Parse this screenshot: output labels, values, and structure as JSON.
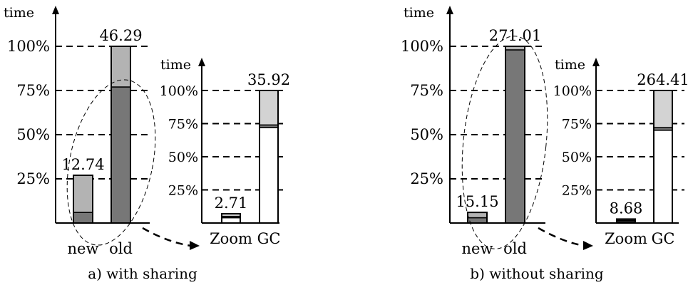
{
  "chart_data": [
    {
      "type": "bar",
      "panel": "a",
      "caption": "a) with sharing",
      "ylabel": "time",
      "yticks": [
        "25%",
        "50%",
        "75%",
        "100%"
      ],
      "categories": [
        "new",
        "old"
      ],
      "totals": [
        "12.74",
        "46.29"
      ],
      "stacked_percent": {
        "dark": [
          6,
          77
        ],
        "light": [
          21,
          23
        ]
      },
      "ylim": [
        0,
        100
      ]
    },
    {
      "type": "bar",
      "panel": "a-zoom",
      "ylabel": "time",
      "yticks": [
        "25%",
        "50%",
        "75%",
        "100%"
      ],
      "categories": [
        "Zoom",
        "GC"
      ],
      "totals": [
        "2.71",
        "35.92"
      ],
      "stacked_percent": {
        "white": [
          4,
          72
        ],
        "dark": [
          1,
          2
        ],
        "light": [
          2,
          26
        ]
      },
      "ylim": [
        0,
        100
      ]
    },
    {
      "type": "bar",
      "panel": "b",
      "caption": "b) without sharing",
      "ylabel": "time",
      "yticks": [
        "25%",
        "50%",
        "75%",
        "100%"
      ],
      "categories": [
        "new",
        "old"
      ],
      "totals": [
        "15.15",
        "271.01"
      ],
      "stacked_percent": {
        "dark": [
          3,
          98
        ],
        "light": [
          3,
          2
        ]
      },
      "ylim": [
        0,
        100
      ]
    },
    {
      "type": "bar",
      "panel": "b-zoom",
      "ylabel": "time",
      "yticks": [
        "25%",
        "50%",
        "75%",
        "100%"
      ],
      "categories": [
        "Zoom",
        "GC"
      ],
      "totals": [
        "8.68",
        "264.41"
      ],
      "stacked_percent": {
        "white": [
          1,
          70
        ],
        "dark": [
          1,
          2
        ],
        "light": [
          1,
          28
        ]
      },
      "ylim": [
        0,
        100
      ]
    }
  ],
  "colors": {
    "dark": "#777777",
    "light": "#b3b3b3",
    "lightzoom": "#d3d3d3",
    "white": "#ffffff",
    "line": "#000000"
  }
}
